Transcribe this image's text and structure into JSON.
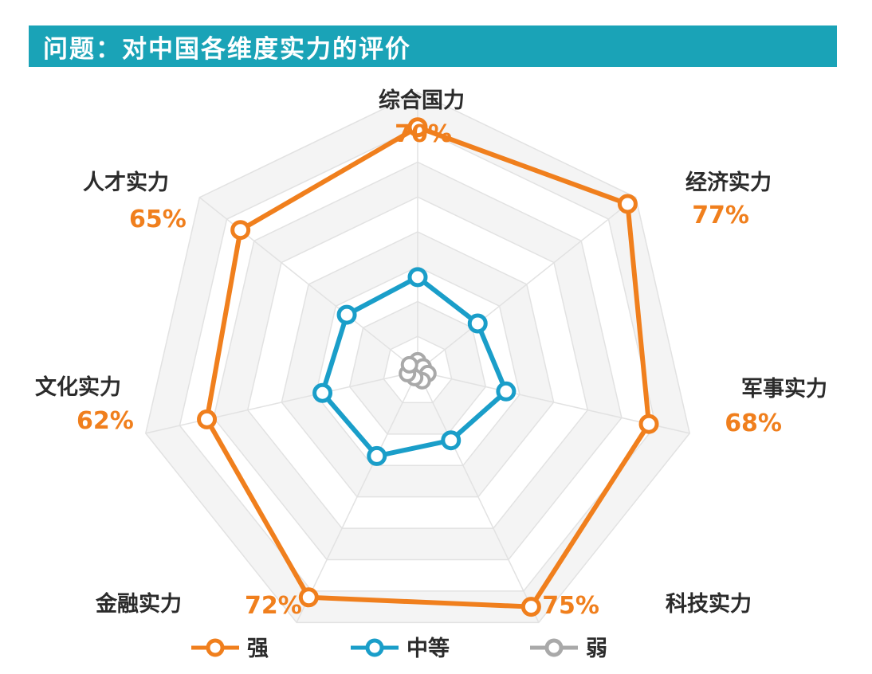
{
  "title": "问题：对中国各维度实力的评价",
  "chart_data": {
    "type": "radar",
    "axes": [
      {
        "name": "综合国力",
        "label": "70%"
      },
      {
        "name": "经济实力",
        "label": "77%"
      },
      {
        "name": "军事实力",
        "label": "68%"
      },
      {
        "name": "科技实力",
        "label": "75%"
      },
      {
        "name": "金融实力",
        "label": "72%"
      },
      {
        "name": "文化实力",
        "label": "62%"
      },
      {
        "name": "人才实力",
        "label": "65%"
      }
    ],
    "series": [
      {
        "name": "强",
        "color": "#f07f1d",
        "values": [
          70,
          77,
          68,
          75,
          72,
          62,
          65
        ]
      },
      {
        "name": "中等",
        "color": "#1a9ec9",
        "values": [
          27,
          22,
          26,
          22,
          27,
          28,
          26
        ]
      },
      {
        "name": "弱",
        "color": "#a9a9a9",
        "values": [
          3,
          2,
          3,
          3,
          2,
          3,
          3
        ]
      }
    ],
    "range": [
      0,
      80
    ],
    "grid": true,
    "legend_position": "bottom"
  }
}
